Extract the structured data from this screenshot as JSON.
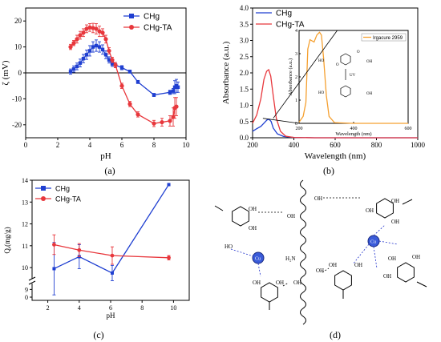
{
  "panel_labels": {
    "a": "(a)",
    "b": "(b)",
    "c": "(c)",
    "d": "(d)"
  },
  "chart_data": [
    {
      "id": "a",
      "type": "line",
      "xlabel": "pH",
      "ylabel": "ζ (mV)",
      "xlim": [
        0,
        10
      ],
      "ylim": [
        -25,
        25
      ],
      "xticks": [
        "0",
        "2",
        "4",
        "6",
        "8",
        "10"
      ],
      "yticks": [
        "-20",
        "-10",
        "0",
        "10",
        "20"
      ],
      "legend_position": "top-right",
      "series": [
        {
          "name": "CHg",
          "color": "#1f3fd1",
          "marker": "square",
          "points": [
            [
              2.8,
              0.5
            ],
            [
              3.0,
              1.5
            ],
            [
              3.2,
              2.5
            ],
            [
              3.4,
              3.8
            ],
            [
              3.6,
              5.5
            ],
            [
              3.8,
              7.0
            ],
            [
              4.0,
              8.5
            ],
            [
              4.2,
              10.0
            ],
            [
              4.4,
              10.5
            ],
            [
              4.6,
              10.0
            ],
            [
              4.8,
              9.0
            ],
            [
              5.0,
              7.0
            ],
            [
              5.2,
              5.0
            ],
            [
              5.4,
              3.5
            ],
            [
              5.6,
              3.0
            ],
            [
              6.0,
              2.0
            ],
            [
              6.5,
              0.5
            ],
            [
              7.0,
              -3.5
            ],
            [
              8.0,
              -8.5
            ],
            [
              9.0,
              -7.5
            ],
            [
              9.2,
              -7.0
            ],
            [
              9.3,
              -5.5
            ],
            [
              9.4,
              -5.0
            ],
            [
              9.5,
              -5.5
            ]
          ],
          "errors": [
            1,
            1.2,
            1.3,
            1.5,
            1.6,
            1.8,
            2,
            2,
            2.2,
            2,
            1.8,
            1.5,
            1.2,
            1,
            1,
            0.8,
            0.6,
            0.6,
            0.6,
            0.8,
            1,
            2.5,
            2.5,
            2
          ]
        },
        {
          "name": "CHg-TA",
          "color": "#e8373c",
          "marker": "circle",
          "points": [
            [
              2.8,
              10.0
            ],
            [
              3.0,
              11.5
            ],
            [
              3.2,
              13.0
            ],
            [
              3.4,
              14.5
            ],
            [
              3.6,
              15.5
            ],
            [
              3.8,
              17.0
            ],
            [
              4.0,
              17.5
            ],
            [
              4.2,
              17.3
            ],
            [
              4.4,
              17.0
            ],
            [
              4.6,
              16.0
            ],
            [
              4.8,
              15.5
            ],
            [
              5.0,
              13.0
            ],
            [
              5.2,
              8.5
            ],
            [
              5.4,
              5.0
            ],
            [
              5.6,
              3.0
            ],
            [
              6.0,
              -5.0
            ],
            [
              6.5,
              -12.0
            ],
            [
              7.0,
              -16.0
            ],
            [
              8.0,
              -19.5
            ],
            [
              8.5,
              -19.0
            ],
            [
              9.0,
              -18.5
            ],
            [
              9.2,
              -17.0
            ],
            [
              9.3,
              -13.5
            ],
            [
              9.4,
              -13.0
            ]
          ],
          "errors": [
            1,
            1,
            1.5,
            1.5,
            1.5,
            1.5,
            1.5,
            1.8,
            2,
            2,
            1.5,
            1.5,
            1.2,
            1,
            1,
            1,
            1,
            1,
            1.2,
            1.5,
            2,
            3.5,
            4,
            3.5
          ]
        }
      ]
    },
    {
      "id": "b",
      "type": "line",
      "xlabel": "Wavelength (nm)",
      "ylabel": "Absorbance (a.u.)",
      "xlim": [
        200,
        1000
      ],
      "ylim": [
        0,
        4
      ],
      "xticks": [
        "200",
        "400",
        "600",
        "800",
        "1000"
      ],
      "yticks": [
        "0.0",
        "0.5",
        "1.0",
        "1.5",
        "2.0",
        "2.5",
        "3.0",
        "3.5",
        "4.0"
      ],
      "legend_position": "top-left",
      "series": [
        {
          "name": "CHg",
          "color": "#1f3fd1",
          "points": [
            [
              200,
              0.2
            ],
            [
              220,
              0.28
            ],
            [
              240,
              0.35
            ],
            [
              255,
              0.45
            ],
            [
              270,
              0.55
            ],
            [
              280,
              0.57
            ],
            [
              290,
              0.5
            ],
            [
              300,
              0.3
            ],
            [
              320,
              0.12
            ],
            [
              350,
              0.04
            ],
            [
              400,
              0.01
            ],
            [
              500,
              0.0
            ],
            [
              1000,
              0.0
            ]
          ]
        },
        {
          "name": "CHg-TA",
          "color": "#e8373c",
          "points": [
            [
              200,
              0.45
            ],
            [
              220,
              0.7
            ],
            [
              240,
              1.2
            ],
            [
              255,
              1.8
            ],
            [
              268,
              2.05
            ],
            [
              278,
              2.1
            ],
            [
              288,
              1.9
            ],
            [
              300,
              1.3
            ],
            [
              315,
              0.6
            ],
            [
              335,
              0.2
            ],
            [
              360,
              0.05
            ],
            [
              400,
              0.01
            ],
            [
              500,
              0.0
            ],
            [
              1000,
              0.0
            ]
          ]
        }
      ],
      "inset": {
        "type": "line",
        "xlabel": "Wavelength (nm)",
        "ylabel": "Absorbance (a.u.)",
        "xlim": [
          200,
          600
        ],
        "ylim": [
          0,
          4
        ],
        "xticks": [
          "200",
          "400",
          "600"
        ],
        "yticks": [
          "0",
          "1",
          "2",
          "3",
          "4"
        ],
        "legend": "Irgacure 2959",
        "color": "#f5a030",
        "points": [
          [
            200,
            0.05
          ],
          [
            215,
            0.3
          ],
          [
            225,
            0.9
          ],
          [
            232,
            3.2
          ],
          [
            240,
            3.6
          ],
          [
            255,
            3.5
          ],
          [
            265,
            3.8
          ],
          [
            275,
            3.92
          ],
          [
            282,
            3.8
          ],
          [
            290,
            2.8
          ],
          [
            300,
            1.2
          ],
          [
            310,
            0.3
          ],
          [
            330,
            0.03
          ],
          [
            400,
            0.0
          ],
          [
            600,
            0.0
          ]
        ],
        "chem_labels": [
          "HO",
          "O",
          "O",
          "OH",
          "UV"
        ]
      }
    },
    {
      "id": "c",
      "type": "line",
      "xlabel": "pH",
      "ylabel": "Qₑ(mg/g)",
      "xlim": [
        1,
        11
      ],
      "ylim": [
        8.5,
        14
      ],
      "xticks": [
        "2",
        "4",
        "6",
        "8",
        "10"
      ],
      "yticks": [
        "9",
        "10",
        "11",
        "12",
        "13",
        "14"
      ],
      "extra_ytick": "0",
      "legend_position": "top-left",
      "series": [
        {
          "name": "CHg",
          "color": "#1f3fd1",
          "marker": "square",
          "points": [
            [
              2.4,
              9.95
            ],
            [
              4.0,
              10.5
            ],
            [
              6.1,
              9.75
            ],
            [
              9.7,
              13.8
            ]
          ],
          "errors": [
            1.2,
            0.55,
            0.35,
            0
          ]
        },
        {
          "name": "CHg-TA",
          "color": "#e8373c",
          "marker": "circle",
          "points": [
            [
              2.4,
              11.05
            ],
            [
              4.0,
              10.8
            ],
            [
              6.1,
              10.55
            ],
            [
              9.7,
              10.45
            ]
          ],
          "errors": [
            0.45,
            0.3,
            0.4,
            0.1
          ]
        }
      ]
    }
  ],
  "diagram_d": {
    "labels": {
      "oh": "OH",
      "ho": "HO",
      "h2n": "H₂N",
      "cu": "Cu"
    }
  }
}
